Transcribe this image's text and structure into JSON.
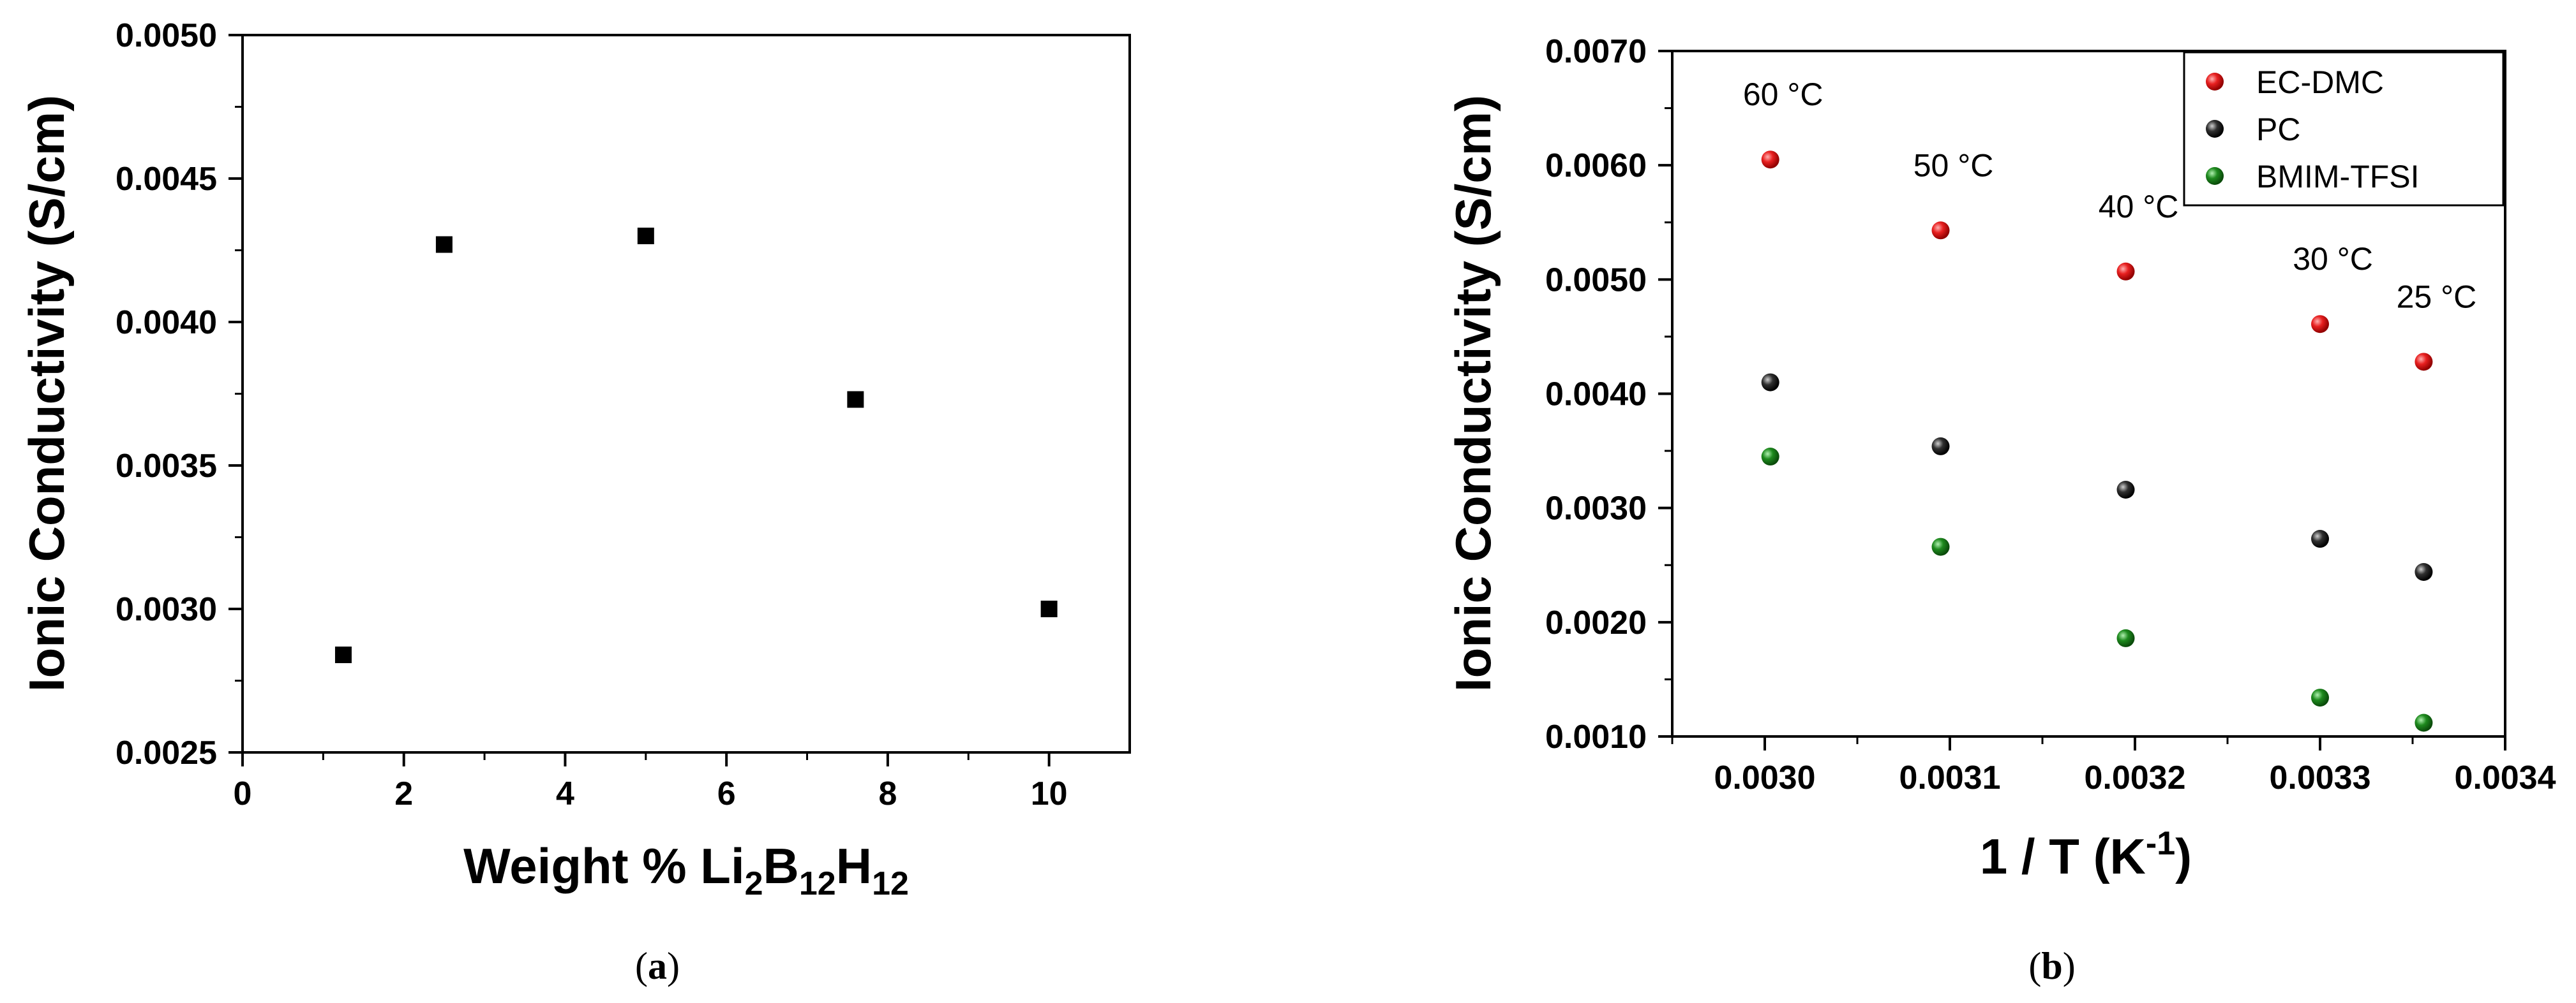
{
  "chart_data": [
    {
      "type": "scatter",
      "panel_label": "a",
      "xlabel": {
        "main": "Weight % Li",
        "sub1": "2",
        "mid": "B",
        "sub2": "12",
        "end": "H",
        "sub3": "12"
      },
      "ylabel": "Ionic Conductivity (S/cm)",
      "xlim": [
        0,
        11
      ],
      "ylim": [
        0.0025,
        0.005
      ],
      "x_ticks": [
        0,
        2,
        4,
        6,
        8,
        10
      ],
      "x_tick_labels": [
        "0",
        "2",
        "4",
        "6",
        "8",
        "10"
      ],
      "y_ticks": [
        0.0025,
        0.003,
        0.0035,
        0.004,
        0.0045,
        0.005
      ],
      "y_tick_labels": [
        "0.0025",
        "0.0030",
        "0.0035",
        "0.0040",
        "0.0045",
        "0.0050"
      ],
      "marker": "square",
      "color": "#000000",
      "series": [
        {
          "x": [
            1.25,
            2.5,
            5,
            7.6,
            10
          ],
          "y": [
            0.00284,
            0.00427,
            0.0043,
            0.00373,
            0.003
          ]
        }
      ],
      "grid": false
    },
    {
      "type": "scatter",
      "panel_label": "b",
      "xlabel": {
        "main": "1 / T (K",
        "sup": "-1",
        "end": ")"
      },
      "ylabel": "Ionic Conductivity (S/cm)",
      "xlim": [
        0.00295,
        0.0034
      ],
      "ylim": [
        0.001,
        0.007
      ],
      "x_ticks": [
        0.003,
        0.0031,
        0.0032,
        0.0033,
        0.0034
      ],
      "x_tick_labels": [
        "0.0030",
        "0.0031",
        "0.0032",
        "0.0033",
        "0.0034"
      ],
      "y_ticks": [
        0.001,
        0.002,
        0.003,
        0.004,
        0.005,
        0.006,
        0.007
      ],
      "y_tick_labels": [
        "0.0010",
        "0.0020",
        "0.0030",
        "0.0040",
        "0.0050",
        "0.0060",
        "0.0070"
      ],
      "x": [
        0.003003,
        0.003095,
        0.003195,
        0.0033,
        0.003356
      ],
      "series": [
        {
          "name": "EC-DMC",
          "color": "#e02020",
          "y": [
            0.00605,
            0.00543,
            0.00507,
            0.00461,
            0.00428
          ]
        },
        {
          "name": "PC",
          "color": "#1a1a1a",
          "y": [
            0.0041,
            0.00354,
            0.00316,
            0.00273,
            0.00244
          ]
        },
        {
          "name": "BMIM-TFSI",
          "color": "#1e8a1e",
          "y": [
            0.00345,
            0.00266,
            0.00186,
            0.00134,
            0.00112
          ]
        }
      ],
      "annotations": [
        "60 °C",
        "50 °C",
        "40 °C",
        "30 °C",
        "25 °C"
      ],
      "legend_position": "top-right",
      "grid": false
    }
  ]
}
